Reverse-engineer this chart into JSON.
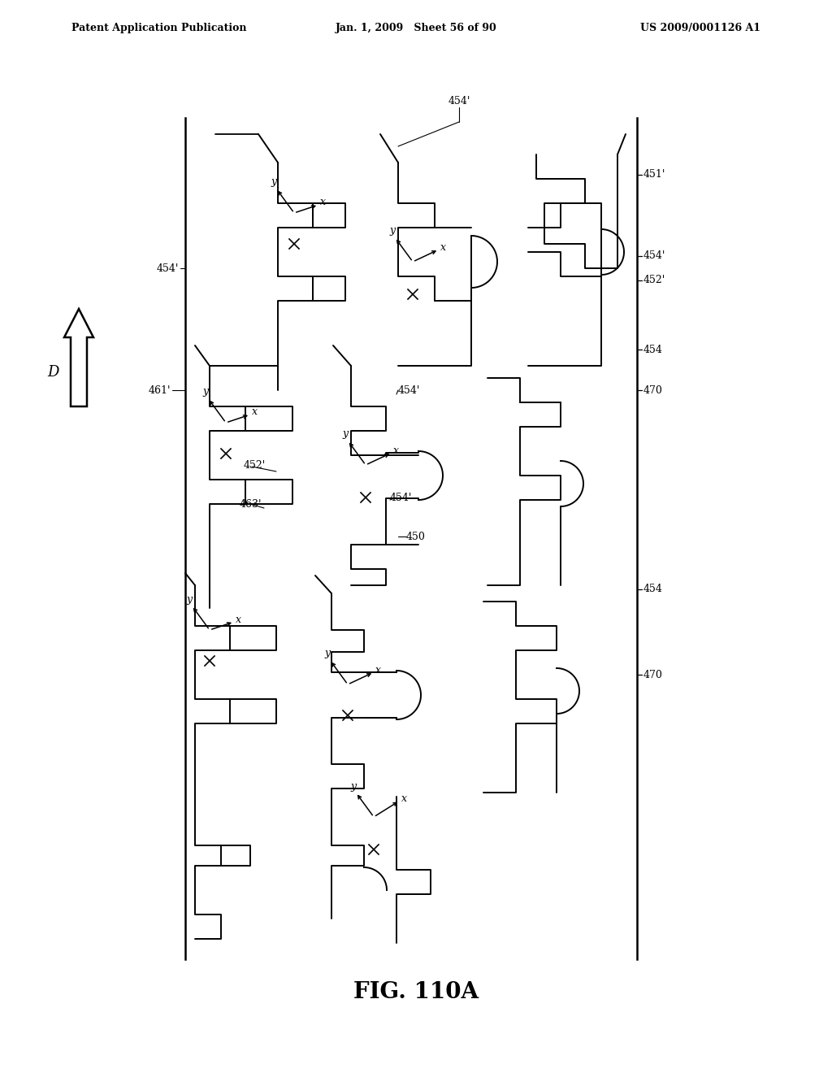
{
  "header_left": "Patent Application Publication",
  "header_mid": "Jan. 1, 2009   Sheet 56 of 90",
  "header_right": "US 2009/0001126 A1",
  "fig_label": "FIG. 110A",
  "background": "#ffffff"
}
